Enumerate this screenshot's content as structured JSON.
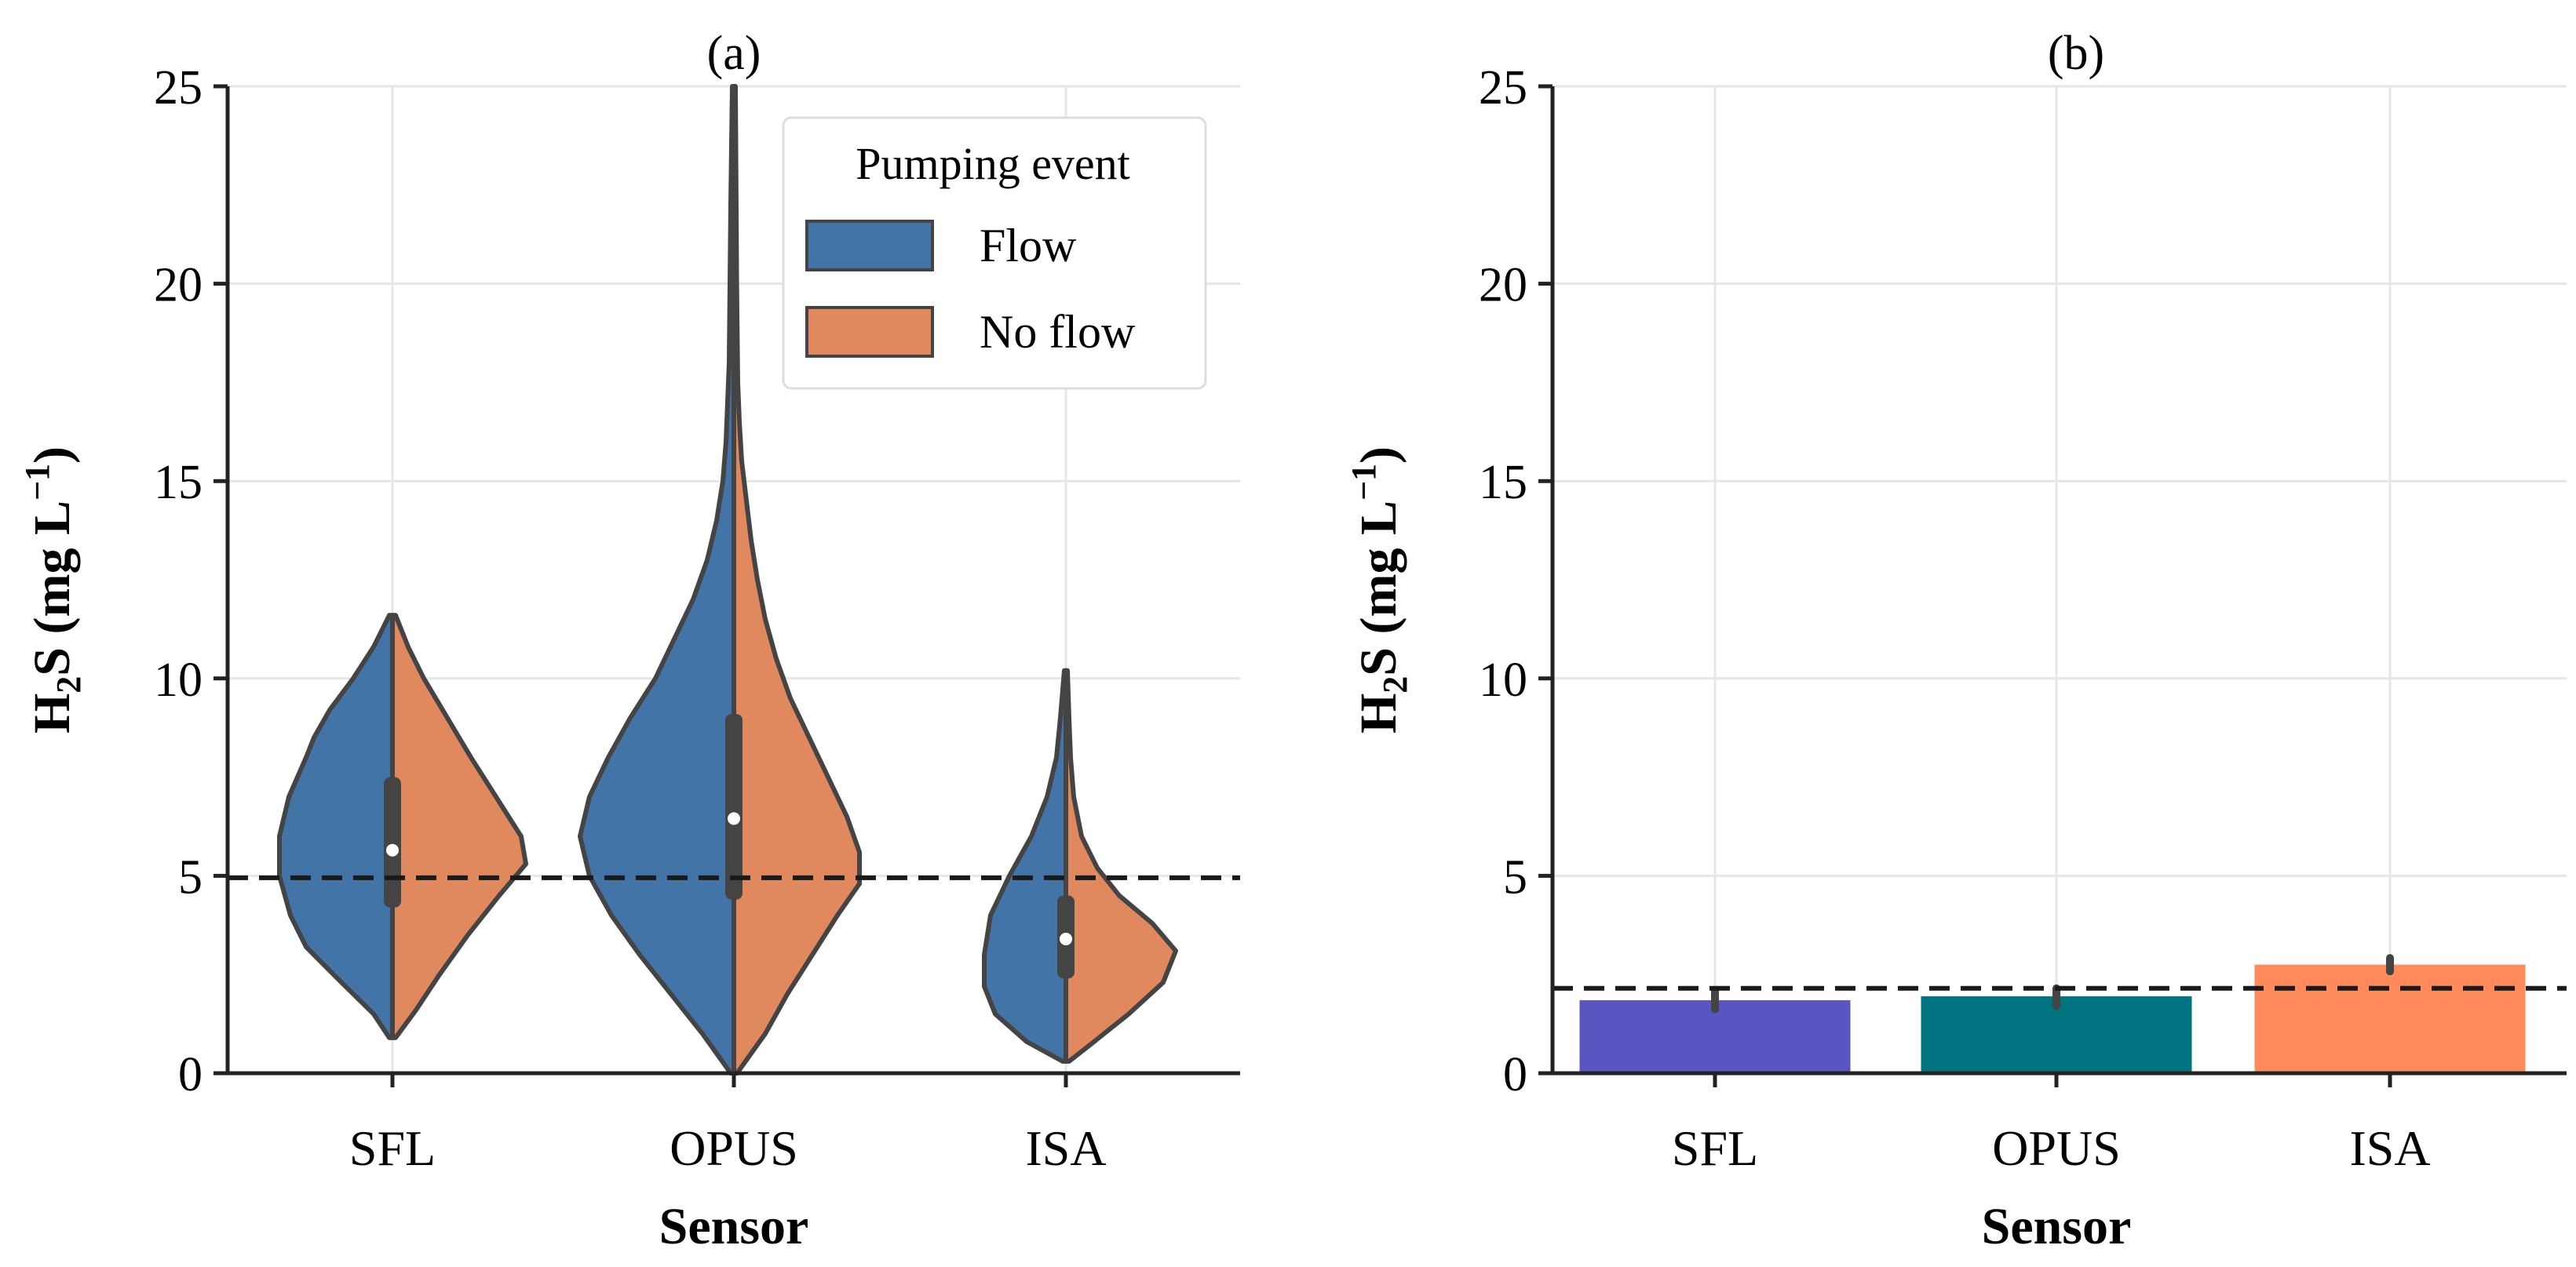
{
  "chart_data": [
    {
      "panel_label": "(a)",
      "type": "violin",
      "xlabel": "Sensor",
      "ylabel_main": "H",
      "ylabel_sub": "2",
      "ylabel_rest": "S (mg L",
      "ylabel_sup": "−1",
      "ylabel_close": ")",
      "ylim": [
        0,
        25
      ],
      "yticks": [
        0,
        5,
        10,
        15,
        20,
        25
      ],
      "ytick_labels": [
        "0",
        "5",
        "10",
        "15",
        "20",
        "25"
      ],
      "categories": [
        "SFL",
        "OPUS",
        "ISA"
      ],
      "grid": true,
      "reference_line": 4.95,
      "legend": {
        "title": "Pumping event",
        "position": "top-right",
        "entries": [
          {
            "label": "Flow",
            "color": "#4374A8"
          },
          {
            "label": "No flow",
            "color": "#E0885E"
          }
        ]
      },
      "groups": [
        {
          "category": "SFL",
          "median": 5.65,
          "q1": 4.2,
          "q3": 7.5,
          "flow": {
            "min": 0.9,
            "max": 11.6,
            "profile": [
              [
                0.9,
                0.02
              ],
              [
                1.5,
                0.12
              ],
              [
                2.4,
                0.35
              ],
              [
                3.2,
                0.55
              ],
              [
                4.0,
                0.65
              ],
              [
                5.0,
                0.72
              ],
              [
                6.0,
                0.72
              ],
              [
                7.0,
                0.66
              ],
              [
                8.0,
                0.55
              ],
              [
                8.5,
                0.5
              ],
              [
                9.2,
                0.4
              ],
              [
                10.0,
                0.25
              ],
              [
                10.8,
                0.12
              ],
              [
                11.6,
                0.02
              ]
            ]
          },
          "noflow": {
            "min": 0.9,
            "max": 11.6,
            "profile": [
              [
                0.9,
                0.02
              ],
              [
                1.6,
                0.15
              ],
              [
                2.5,
                0.3
              ],
              [
                3.5,
                0.48
              ],
              [
                4.5,
                0.68
              ],
              [
                5.3,
                0.85
              ],
              [
                6.0,
                0.82
              ],
              [
                7.0,
                0.66
              ],
              [
                8.0,
                0.5
              ],
              [
                9.0,
                0.35
              ],
              [
                10.0,
                0.2
              ],
              [
                10.8,
                0.1
              ],
              [
                11.6,
                0.02
              ]
            ]
          }
        },
        {
          "category": "OPUS",
          "median": 6.45,
          "q1": 4.4,
          "q3": 9.1,
          "flow": {
            "min": 0.0,
            "max": 25.0,
            "profile": [
              [
                0.0,
                0.02
              ],
              [
                1.0,
                0.2
              ],
              [
                2.0,
                0.4
              ],
              [
                3.0,
                0.6
              ],
              [
                4.0,
                0.78
              ],
              [
                5.0,
                0.92
              ],
              [
                6.0,
                0.98
              ],
              [
                7.0,
                0.92
              ],
              [
                8.0,
                0.8
              ],
              [
                9.0,
                0.66
              ],
              [
                10.0,
                0.5
              ],
              [
                11.0,
                0.38
              ],
              [
                12.0,
                0.26
              ],
              [
                13.0,
                0.17
              ],
              [
                14.0,
                0.11
              ],
              [
                15.0,
                0.07
              ],
              [
                16.0,
                0.05
              ],
              [
                17.0,
                0.04
              ],
              [
                18.0,
                0.03
              ],
              [
                20.0,
                0.025
              ],
              [
                22.0,
                0.02
              ],
              [
                25.0,
                0.01
              ]
            ]
          },
          "noflow": {
            "min": 0.0,
            "max": 25.0,
            "profile": [
              [
                0.0,
                0.02
              ],
              [
                1.0,
                0.2
              ],
              [
                2.0,
                0.34
              ],
              [
                3.0,
                0.5
              ],
              [
                4.0,
                0.66
              ],
              [
                4.8,
                0.8
              ],
              [
                5.6,
                0.8
              ],
              [
                6.5,
                0.72
              ],
              [
                7.5,
                0.6
              ],
              [
                8.5,
                0.48
              ],
              [
                9.5,
                0.36
              ],
              [
                10.5,
                0.27
              ],
              [
                11.5,
                0.2
              ],
              [
                12.5,
                0.15
              ],
              [
                13.5,
                0.11
              ],
              [
                14.5,
                0.08
              ],
              [
                15.5,
                0.05
              ],
              [
                16.5,
                0.035
              ],
              [
                17.5,
                0.025
              ],
              [
                20.0,
                0.018
              ],
              [
                25.0,
                0.01
              ]
            ]
          }
        },
        {
          "category": "ISA",
          "median": 3.4,
          "q1": 2.4,
          "q3": 4.5,
          "flow": {
            "min": 0.3,
            "max": 10.2,
            "profile": [
              [
                0.3,
                0.02
              ],
              [
                0.8,
                0.25
              ],
              [
                1.5,
                0.45
              ],
              [
                2.2,
                0.52
              ],
              [
                3.0,
                0.52
              ],
              [
                4.0,
                0.48
              ],
              [
                5.0,
                0.36
              ],
              [
                6.0,
                0.22
              ],
              [
                7.0,
                0.12
              ],
              [
                8.0,
                0.06
              ],
              [
                9.0,
                0.035
              ],
              [
                10.2,
                0.01
              ]
            ]
          },
          "noflow": {
            "min": 0.3,
            "max": 10.2,
            "profile": [
              [
                0.3,
                0.02
              ],
              [
                0.8,
                0.18
              ],
              [
                1.5,
                0.4
              ],
              [
                2.3,
                0.62
              ],
              [
                3.1,
                0.7
              ],
              [
                3.8,
                0.55
              ],
              [
                4.5,
                0.34
              ],
              [
                5.2,
                0.2
              ],
              [
                6.0,
                0.1
              ],
              [
                7.0,
                0.05
              ],
              [
                8.0,
                0.03
              ],
              [
                9.0,
                0.02
              ],
              [
                10.2,
                0.01
              ]
            ]
          }
        }
      ]
    },
    {
      "panel_label": "(b)",
      "type": "bar",
      "xlabel": "Sensor",
      "ylabel_main": "H",
      "ylabel_sub": "2",
      "ylabel_rest": "S (mg L",
      "ylabel_sup": "−1",
      "ylabel_close": ")",
      "ylim": [
        0,
        25
      ],
      "yticks": [
        0,
        5,
        10,
        15,
        20,
        25
      ],
      "ytick_labels": [
        "0",
        "5",
        "10",
        "15",
        "20",
        "25"
      ],
      "categories": [
        "SFL",
        "OPUS",
        "ISA"
      ],
      "values": [
        1.85,
        1.95,
        2.75
      ],
      "error_low": [
        1.62,
        1.7,
        2.58
      ],
      "error_high": [
        2.1,
        2.15,
        2.92
      ],
      "colors": [
        "#5B55C2",
        "#007480",
        "#FF8A5B"
      ],
      "grid": true,
      "reference_line": 2.15
    }
  ]
}
